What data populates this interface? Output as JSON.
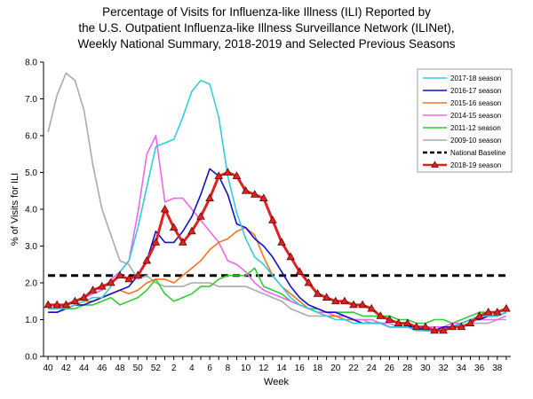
{
  "chart_data": {
    "type": "line",
    "title": [
      "Percentage of Visits for Influenza-like Illness (ILI) Reported by",
      "the U.S. Outpatient Influenza-like Illness Surveillance Network (ILINet),",
      "Weekly National Summary, 2018-2019 and Selected Previous Seasons"
    ],
    "xlabel": "Week",
    "ylabel": "% of Visits for ILI",
    "ylim": [
      0,
      8
    ],
    "yticks": [
      "0.0",
      "1.0",
      "2.0",
      "3.0",
      "4.0",
      "5.0",
      "6.0",
      "7.0",
      "8.0"
    ],
    "categories": [
      "40",
      "41",
      "42",
      "43",
      "44",
      "45",
      "46",
      "47",
      "48",
      "49",
      "50",
      "51",
      "52",
      "1",
      "2",
      "3",
      "4",
      "5",
      "6",
      "7",
      "8",
      "9",
      "10",
      "11",
      "12",
      "13",
      "14",
      "15",
      "16",
      "17",
      "18",
      "19",
      "20",
      "21",
      "22",
      "23",
      "24",
      "25",
      "26",
      "27",
      "28",
      "29",
      "30",
      "31",
      "32",
      "33",
      "34",
      "35",
      "36",
      "37",
      "38",
      "39"
    ],
    "xtick_labels": [
      "40",
      "42",
      "44",
      "46",
      "48",
      "50",
      "52",
      "2",
      "4",
      "6",
      "8",
      "10",
      "12",
      "14",
      "16",
      "18",
      "20",
      "22",
      "24",
      "26",
      "28",
      "30",
      "32",
      "34",
      "36",
      "38"
    ],
    "grid": false,
    "legend_position": "top-right",
    "series": [
      {
        "name": "2017-18 season",
        "color": "#33ccdd",
        "values": [
          1.3,
          1.3,
          1.3,
          1.4,
          1.5,
          1.6,
          1.6,
          1.9,
          2.3,
          2.6,
          3.5,
          4.6,
          5.7,
          5.8,
          5.9,
          6.5,
          7.2,
          7.5,
          7.4,
          6.5,
          4.9,
          3.9,
          3.2,
          2.7,
          2.5,
          2.2,
          1.9,
          1.6,
          1.4,
          1.3,
          1.2,
          1.1,
          1.0,
          1.0,
          0.9,
          0.9,
          0.9,
          0.9,
          0.8,
          0.8,
          0.8,
          0.7,
          0.7,
          0.7,
          0.7,
          0.8,
          0.9,
          1.0,
          1.1,
          1.1,
          1.1,
          1.2
        ]
      },
      {
        "name": "2016-17 season",
        "color": "#1111cc",
        "values": [
          1.2,
          1.2,
          1.3,
          1.4,
          1.4,
          1.5,
          1.6,
          1.7,
          1.8,
          1.9,
          2.2,
          2.6,
          3.4,
          3.1,
          3.1,
          3.4,
          3.8,
          4.4,
          5.1,
          4.9,
          4.4,
          3.6,
          3.5,
          3.2,
          3.0,
          2.7,
          2.3,
          1.9,
          1.6,
          1.4,
          1.3,
          1.2,
          1.2,
          1.1,
          1.0,
          0.9,
          0.9,
          0.9,
          0.8,
          0.8,
          0.8,
          0.8,
          0.7,
          0.7,
          0.8,
          0.8,
          0.9,
          1.0,
          1.0,
          1.1,
          1.1,
          1.2
        ]
      },
      {
        "name": "2015-16 season",
        "color": "#ee7722",
        "values": [
          1.3,
          1.3,
          1.3,
          1.4,
          1.5,
          1.5,
          1.6,
          1.7,
          1.8,
          1.7,
          1.8,
          2.0,
          2.1,
          2.1,
          2.0,
          2.2,
          2.4,
          2.6,
          2.9,
          3.1,
          3.2,
          3.4,
          3.5,
          3.3,
          2.7,
          2.2,
          1.9,
          1.7,
          1.5,
          1.3,
          1.2,
          1.1,
          1.1,
          1.0,
          1.0,
          0.9,
          0.9,
          0.9,
          0.8,
          0.8,
          0.8,
          0.8,
          0.7,
          0.7,
          0.8,
          0.8,
          0.9,
          1.0,
          1.0,
          1.1,
          1.1,
          1.2
        ]
      },
      {
        "name": "2014-15 season",
        "color": "#ee66ee",
        "values": [
          1.3,
          1.3,
          1.4,
          1.5,
          1.6,
          1.7,
          1.8,
          2.1,
          2.3,
          2.6,
          3.9,
          5.5,
          6.0,
          4.2,
          4.3,
          4.3,
          4.0,
          3.7,
          3.4,
          3.1,
          2.6,
          2.5,
          2.3,
          2.0,
          1.8,
          1.7,
          1.6,
          1.5,
          1.4,
          1.3,
          1.2,
          1.2,
          1.1,
          1.1,
          1.0,
          1.0,
          1.0,
          0.9,
          0.9,
          0.8,
          0.8,
          0.8,
          0.8,
          0.8,
          0.8,
          0.9,
          0.9,
          1.0,
          1.0,
          1.0,
          1.0,
          1.1
        ]
      },
      {
        "name": "2011-12 season",
        "color": "#33cc33",
        "values": [
          1.2,
          1.2,
          1.3,
          1.3,
          1.4,
          1.4,
          1.5,
          1.6,
          1.4,
          1.5,
          1.6,
          1.8,
          2.1,
          1.7,
          1.5,
          1.6,
          1.7,
          1.9,
          1.9,
          2.1,
          2.2,
          2.2,
          2.2,
          2.4,
          1.9,
          1.8,
          1.7,
          1.5,
          1.4,
          1.3,
          1.3,
          1.2,
          1.2,
          1.2,
          1.2,
          1.1,
          1.1,
          1.1,
          1.1,
          1.0,
          1.0,
          0.9,
          0.9,
          1.0,
          1.0,
          0.9,
          1.0,
          1.1,
          1.2,
          1.2,
          1.2,
          1.3
        ]
      },
      {
        "name": "2009-10 season",
        "color": "#aaaaaa",
        "values": [
          6.1,
          7.1,
          7.7,
          7.5,
          6.7,
          5.2,
          4.0,
          3.3,
          2.6,
          2.5,
          2.1,
          2.2,
          2.0,
          1.9,
          1.9,
          1.9,
          2.0,
          2.0,
          2.0,
          1.9,
          1.9,
          1.9,
          1.9,
          1.8,
          1.7,
          1.6,
          1.5,
          1.3,
          1.2,
          1.1,
          1.1,
          1.1,
          1.1,
          1.1,
          1.0,
          1.0,
          0.9,
          0.9,
          0.9,
          0.8,
          0.8,
          0.8,
          0.8,
          0.8,
          0.8,
          0.8,
          0.8,
          0.9,
          0.9,
          0.9,
          1.0,
          1.0
        ]
      },
      {
        "name": "National Baseline",
        "color": "#000000",
        "baseline": 2.2
      },
      {
        "name": "2018-19 season",
        "color": "#dd2222",
        "values": [
          1.4,
          1.4,
          1.4,
          1.5,
          1.6,
          1.8,
          1.9,
          2.0,
          2.2,
          2.1,
          2.2,
          2.6,
          3.1,
          4.0,
          3.5,
          3.1,
          3.4,
          3.8,
          4.3,
          4.9,
          5.0,
          4.9,
          4.5,
          4.4,
          4.3,
          3.7,
          3.1,
          2.7,
          2.3,
          2.0,
          1.7,
          1.6,
          1.5,
          1.5,
          1.4,
          1.4,
          1.3,
          1.1,
          1.0,
          0.9,
          0.9,
          0.8,
          0.8,
          0.7,
          0.7,
          0.8,
          0.8,
          0.9,
          1.1,
          1.2,
          1.2,
          1.3
        ]
      }
    ]
  }
}
